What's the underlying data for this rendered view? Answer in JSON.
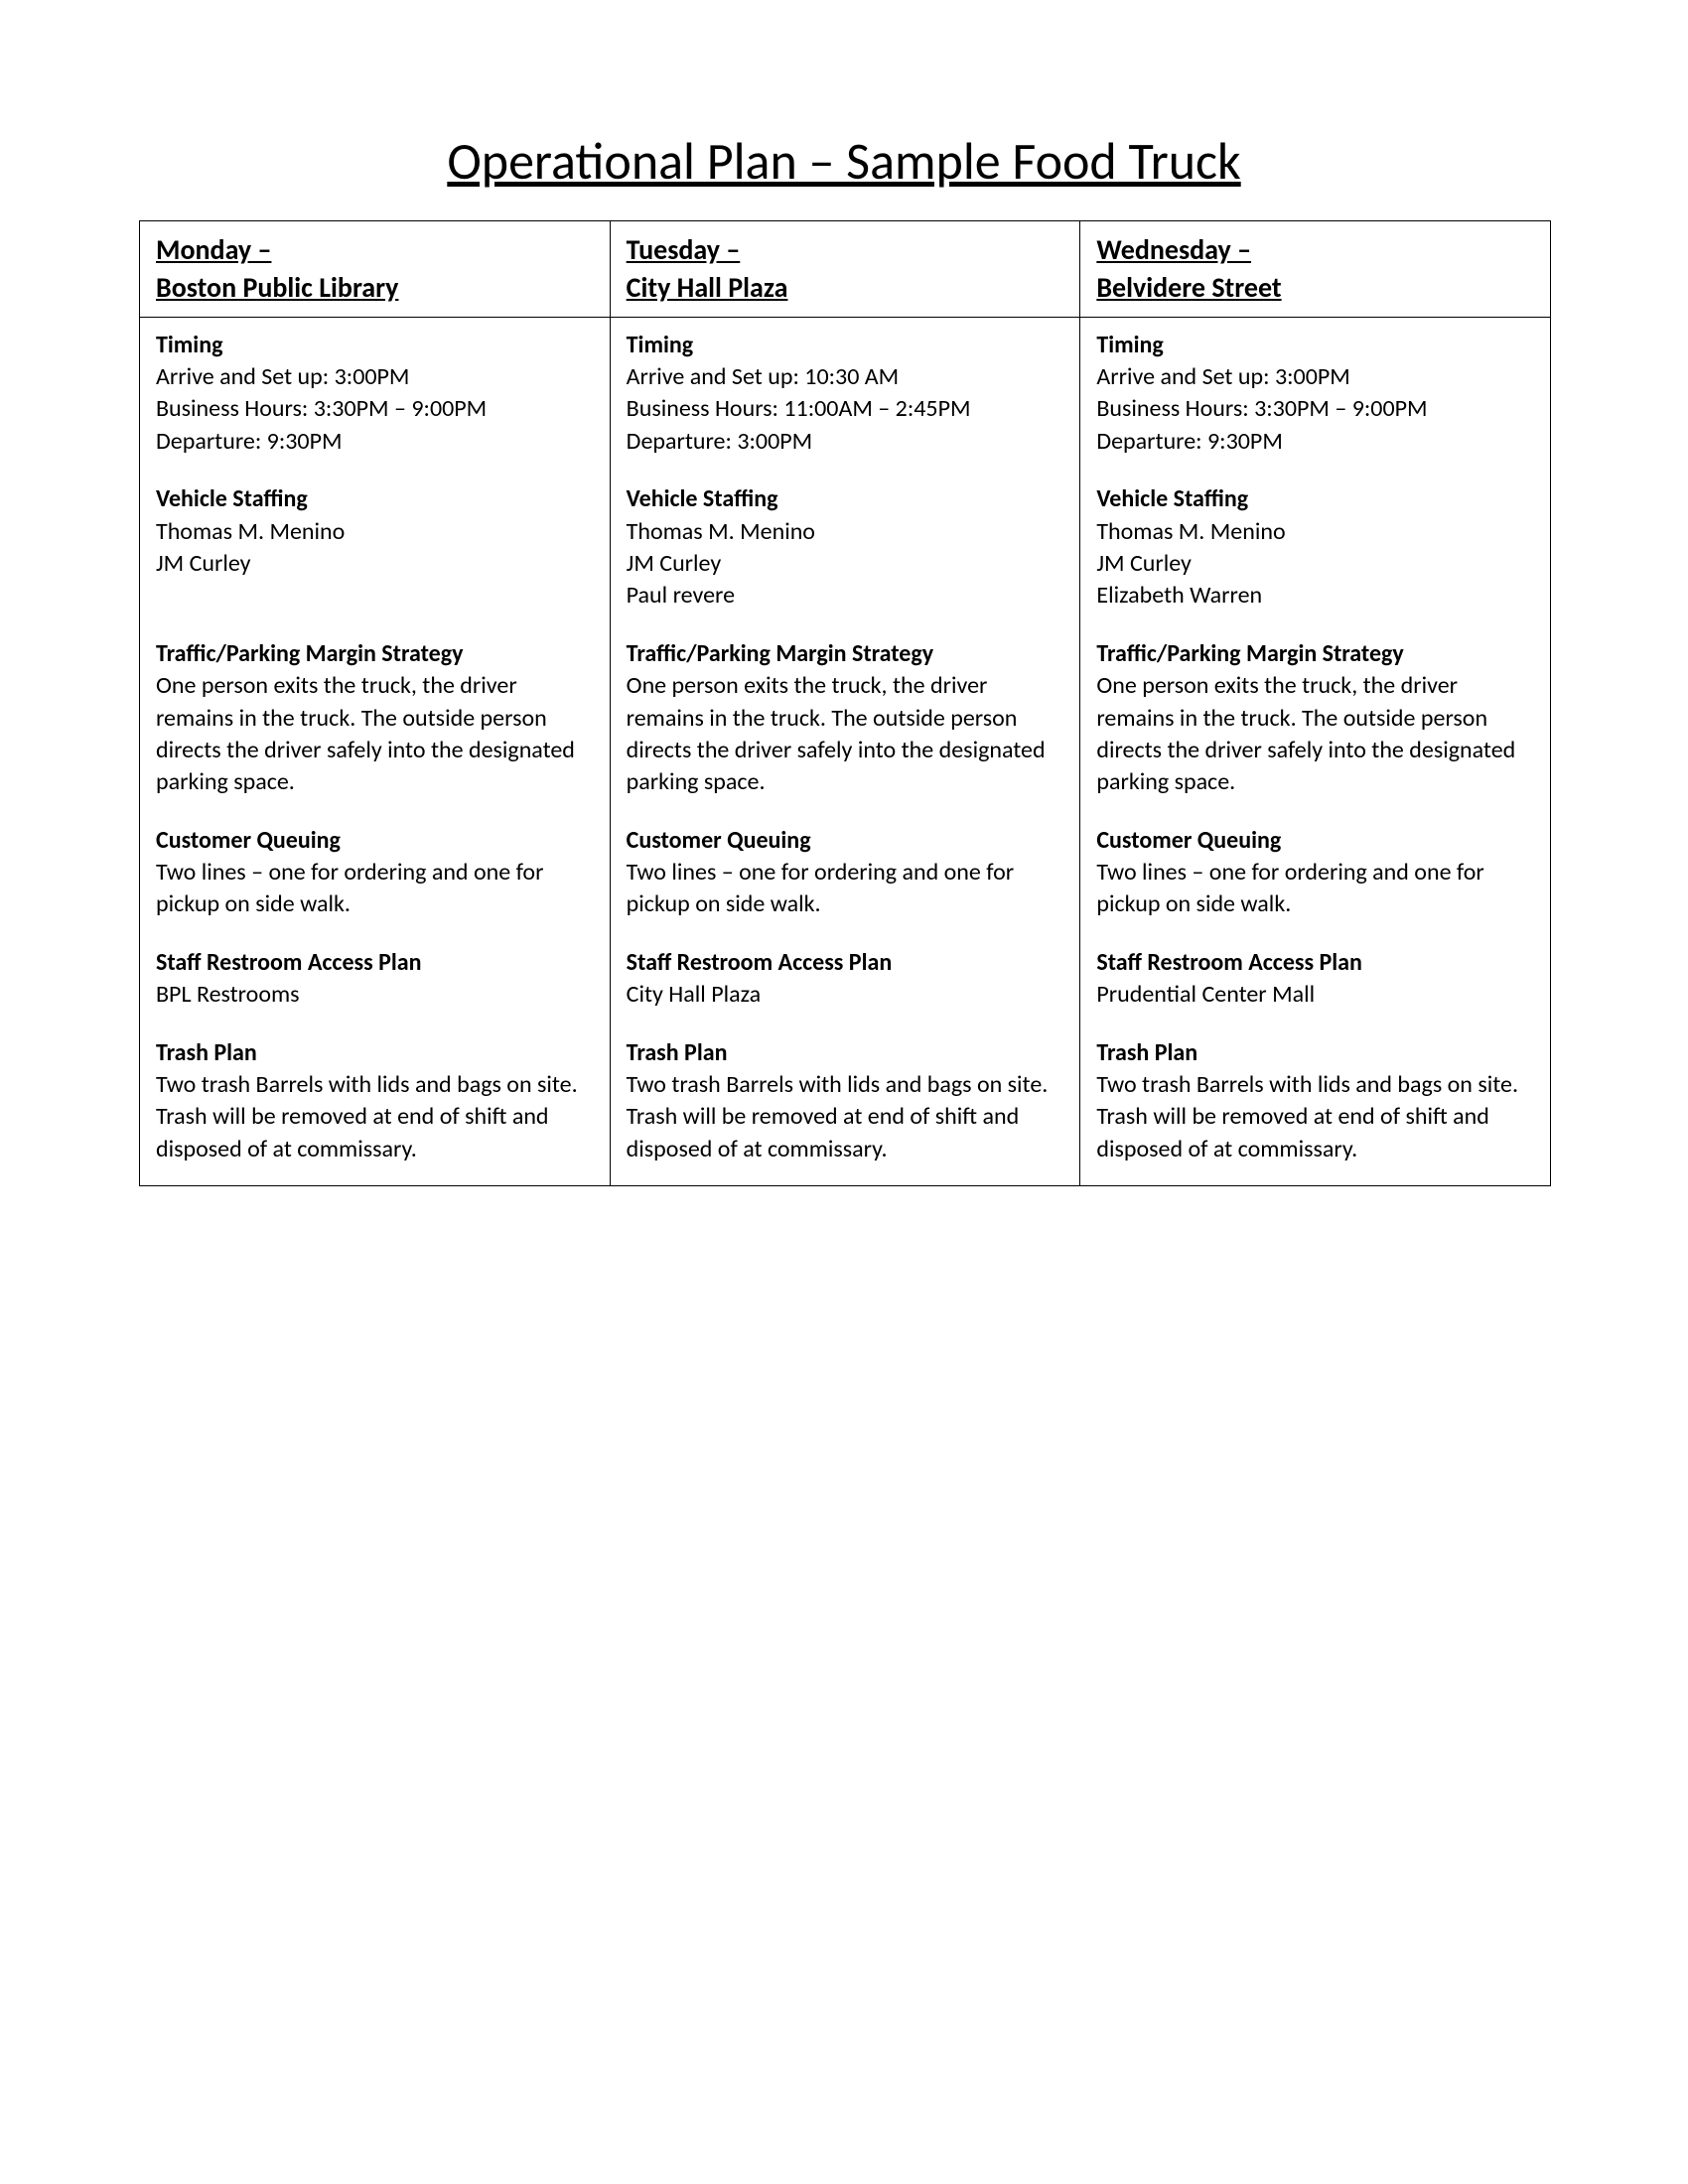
{
  "title": "Operational Plan – Sample Food Truck",
  "columns": [
    {
      "header_line1": "Monday –",
      "header_line2": "Boston Public Library",
      "timing_title": "Timing",
      "timing_arrive": "Arrive and Set up: 3:00PM",
      "timing_hours": "Business Hours: 3:30PM – 9:00PM",
      "timing_depart": "Departure: 9:30PM",
      "staff_title": "Vehicle Staffing",
      "staff_1": "Thomas M. Menino",
      "staff_2": "JM Curley",
      "staff_3": "",
      "traffic_title": "Traffic/Parking Margin Strategy",
      "traffic_body": "One person exits the truck, the driver remains in the truck. The outside person directs the driver safely into the designated parking space.",
      "queue_title": "Customer Queuing",
      "queue_body": "Two lines – one for ordering and one for pickup on side walk.",
      "restroom_title": "Staff Restroom Access Plan",
      "restroom_body": "BPL Restrooms",
      "trash_title": "Trash Plan",
      "trash_body": "Two trash Barrels with lids and bags on site. Trash will be removed at end of shift and disposed of at commissary."
    },
    {
      "header_line1": "Tuesday –",
      "header_line2": "City Hall Plaza",
      "timing_title": "Timing",
      "timing_arrive": "Arrive and Set up: 10:30 AM",
      "timing_hours": "Business Hours: 11:00AM – 2:45PM",
      "timing_depart": "Departure: 3:00PM",
      "staff_title": "Vehicle Staffing",
      "staff_1": "Thomas M. Menino",
      "staff_2": "JM Curley",
      "staff_3": "Paul revere",
      "traffic_title": "Traffic/Parking Margin Strategy",
      "traffic_body": "One person exits the truck, the driver remains in the truck. The outside person directs the driver safely into the designated parking space.",
      "queue_title": "Customer Queuing",
      "queue_body": "Two lines – one for ordering and one for pickup on side walk.",
      "restroom_title": "Staff Restroom Access Plan",
      "restroom_body": "City Hall Plaza",
      "trash_title": "Trash Plan",
      "trash_body": "Two trash Barrels with lids and bags on site. Trash will be removed at end of shift and disposed of at commissary."
    },
    {
      "header_line1": "Wednesday  –",
      "header_line2": "Belvidere Street",
      "timing_title": "Timing",
      "timing_arrive": "Arrive and Set up: 3:00PM",
      "timing_hours": "Business Hours: 3:30PM – 9:00PM",
      "timing_depart": "Departure: 9:30PM",
      "staff_title": "Vehicle Staffing",
      "staff_1": "Thomas M. Menino",
      "staff_2": "JM Curley",
      "staff_3": "Elizabeth Warren",
      "traffic_title": "Traffic/Parking Margin Strategy",
      "traffic_body": "One person exits the truck, the driver remains in the truck. The outside person directs the driver safely into the designated parking space.",
      "queue_title": "Customer Queuing",
      "queue_body": "Two lines – one for ordering and one for pickup on side walk.",
      "restroom_title": "Staff Restroom Access Plan",
      "restroom_body": "Prudential Center Mall",
      "trash_title": "Trash Plan",
      "trash_body": "Two trash Barrels with lids and bags on site. Trash will be removed at end of shift and disposed of at commissary."
    }
  ]
}
